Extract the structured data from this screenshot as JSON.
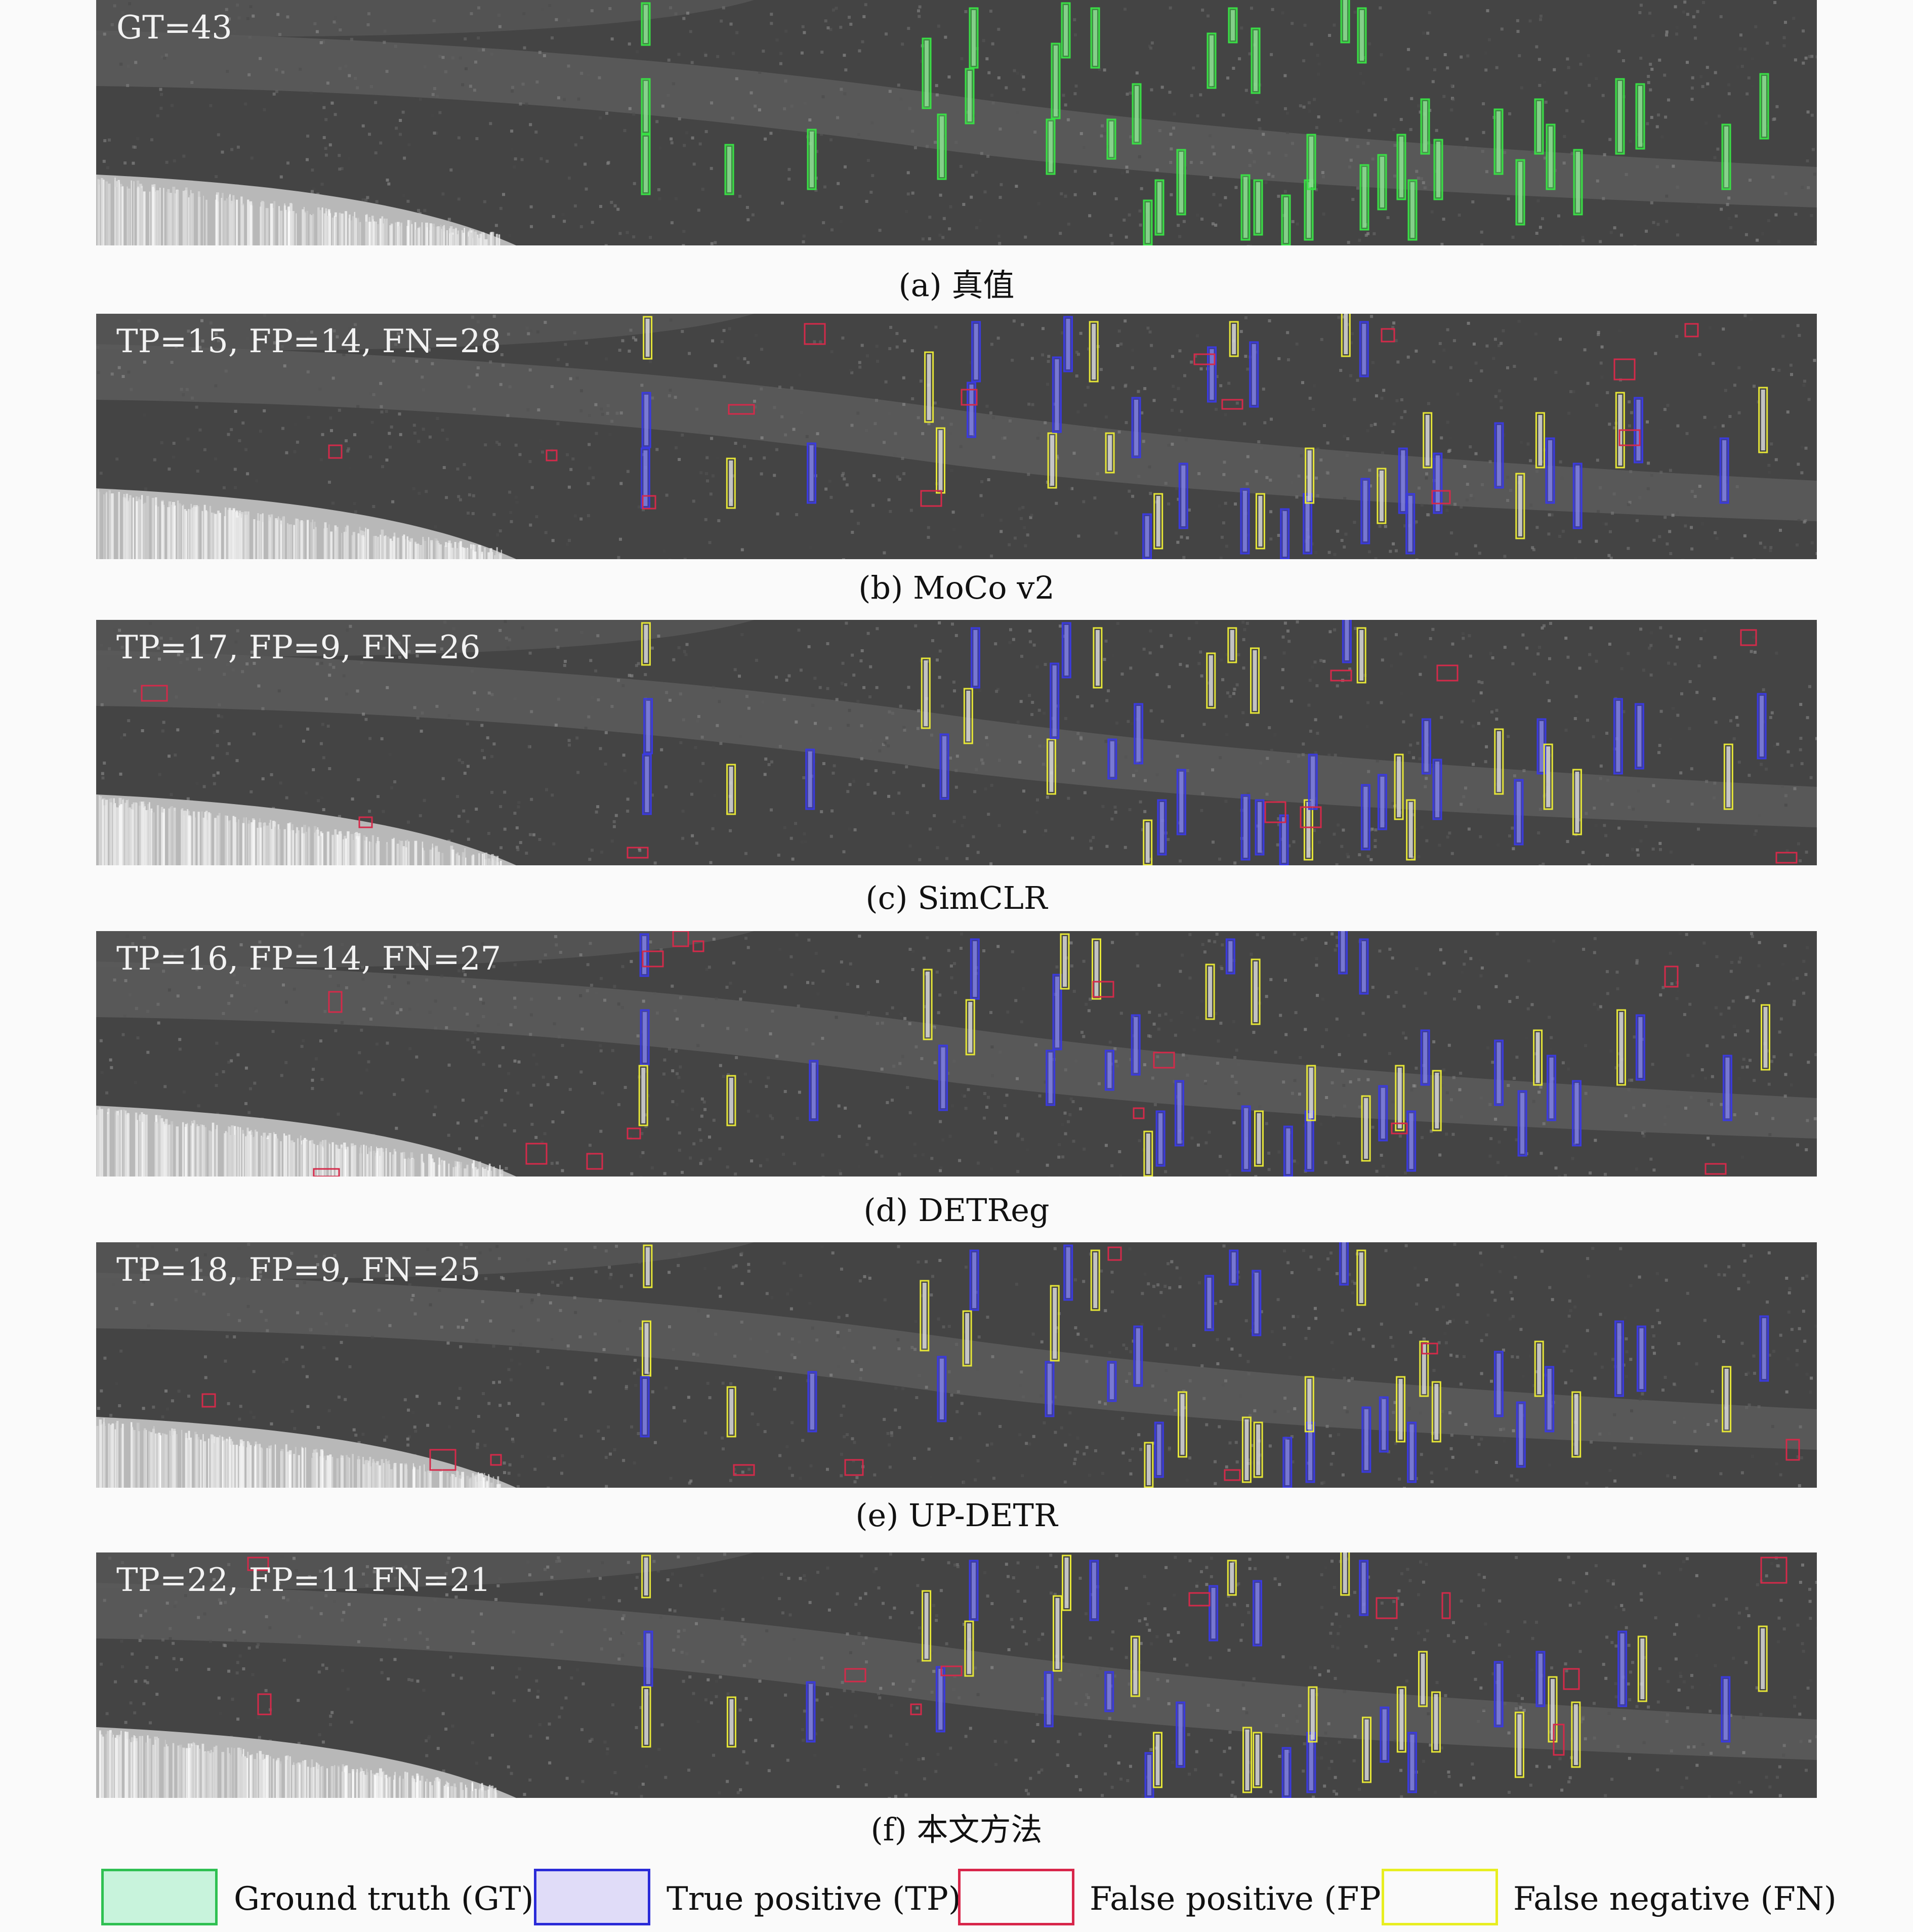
{
  "panels": [
    {
      "stat": "GT=43",
      "caption": "(a) 真值"
    },
    {
      "stat": "TP=15, FP=14, FN=28",
      "caption": "(b) MoCo v2"
    },
    {
      "stat": "TP=17, FP=9, FN=26",
      "caption": "(c) SimCLR"
    },
    {
      "stat": "TP=16, FP=14, FN=27",
      "caption": "(d) DETReg"
    },
    {
      "stat": "TP=18, FP=9, FN=25",
      "caption": "(e) UP-DETR"
    },
    {
      "stat": "TP=22, FP=11 FN=21",
      "caption": "(f) 本文方法"
    }
  ],
  "legend": [
    {
      "label": "Ground truth (GT)",
      "fill": "#c8f3dc",
      "border": "#2fc052"
    },
    {
      "label": "True positive (TP)",
      "fill": "#e0dcf8",
      "border": "#2b2bd8"
    },
    {
      "label": "False positive (FP)",
      "fill": "#fafafa",
      "border": "#d8264a"
    },
    {
      "label": "False negative (FN)",
      "fill": "#fafafa",
      "border": "#e8ee20"
    }
  ],
  "colors": {
    "gt": "#39e045",
    "tp": "#3a3adf",
    "fp": "#d42a4a",
    "fn": "#e6e637"
  }
}
